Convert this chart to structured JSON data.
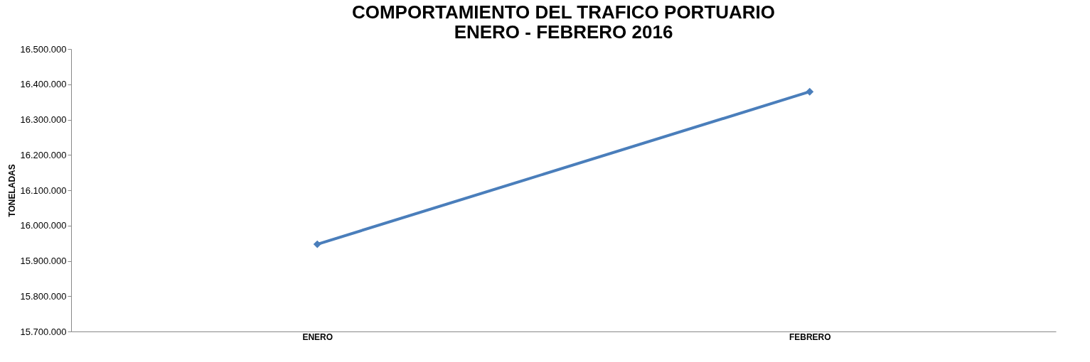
{
  "chart_data": {
    "type": "line",
    "title": "COMPORTAMIENTO DEL TRAFICO PORTUARIO\nENERO - FEBRERO 2016",
    "ylabel": "TONELADAS",
    "categories": [
      "ENERO",
      "FEBRERO"
    ],
    "series": [
      {
        "color": "#4a7ebb",
        "values": [
          15947000,
          16379000
        ]
      }
    ],
    "ylim": [
      15700000,
      16500000
    ],
    "yticks": [
      {
        "value": 15700000,
        "label": "15.700.000"
      },
      {
        "value": 15800000,
        "label": "15.800.000"
      },
      {
        "value": 15900000,
        "label": "15.900.000"
      },
      {
        "value": 16000000,
        "label": "16.000.000"
      },
      {
        "value": 16100000,
        "label": "16.100.000"
      },
      {
        "value": 16200000,
        "label": "16.200.000"
      },
      {
        "value": 16300000,
        "label": "16.300.000"
      },
      {
        "value": 16400000,
        "label": "16.400.000"
      },
      {
        "value": 16500000,
        "label": "16.500.000"
      }
    ],
    "grid": false,
    "marker": "diamond",
    "line_style": "solid"
  }
}
